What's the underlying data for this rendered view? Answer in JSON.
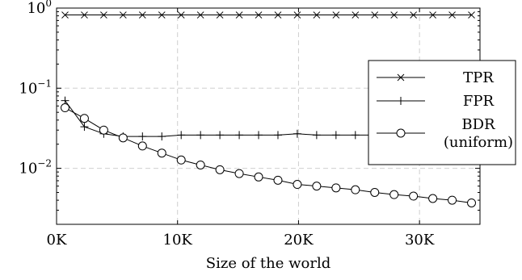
{
  "chart_data": {
    "type": "line",
    "title": "",
    "xlabel": "Size of the world",
    "ylabel": "",
    "xlim": [
      0,
      35000
    ],
    "ylim": [
      0.002,
      1
    ],
    "yscale": "log",
    "grid": true,
    "legend_position": "right",
    "x_ticks": [
      {
        "value": 0,
        "label": "0K"
      },
      {
        "value": 10000,
        "label": "10K"
      },
      {
        "value": 20000,
        "label": "20K"
      },
      {
        "value": 30000,
        "label": "30K"
      }
    ],
    "y_ticks": [
      {
        "value": 1,
        "base": "10",
        "exp": "0"
      },
      {
        "value": 0.1,
        "base": "10",
        "exp": "−1"
      },
      {
        "value": 0.01,
        "base": "10",
        "exp": "−2"
      }
    ],
    "series": [
      {
        "name": "TPR",
        "marker": "x",
        "x": [
          700,
          2300,
          3900,
          5500,
          7100,
          8700,
          10300,
          11900,
          13500,
          15100,
          16700,
          18300,
          19900,
          21500,
          23100,
          24700,
          26300,
          27900,
          29500,
          31100,
          32700,
          34300
        ],
        "values": [
          0.82,
          0.82,
          0.82,
          0.82,
          0.82,
          0.82,
          0.82,
          0.82,
          0.82,
          0.82,
          0.82,
          0.82,
          0.82,
          0.82,
          0.82,
          0.82,
          0.82,
          0.82,
          0.82,
          0.82,
          0.82,
          0.82
        ]
      },
      {
        "name": "FPR",
        "marker": "+",
        "x": [
          700,
          2300,
          3900,
          5500,
          7100,
          8700,
          10300,
          11900,
          13500,
          15100,
          16700,
          18300,
          19900,
          21500,
          23100,
          24700,
          26300,
          27900,
          29500,
          31100,
          32700,
          34300
        ],
        "values": [
          0.07,
          0.033,
          0.027,
          0.025,
          0.025,
          0.025,
          0.026,
          0.026,
          0.026,
          0.026,
          0.026,
          0.026,
          0.027,
          0.026,
          0.026,
          0.026,
          0.026,
          0.026,
          0.026,
          0.026,
          0.026,
          0.026
        ]
      },
      {
        "name": "BDR (uniform)",
        "name_lines": [
          "BDR",
          "(uniform)"
        ],
        "marker": "o",
        "x": [
          700,
          2300,
          3900,
          5500,
          7100,
          8700,
          10300,
          11900,
          13500,
          15100,
          16700,
          18300,
          19900,
          21500,
          23100,
          24700,
          26300,
          27900,
          29500,
          31100,
          32700,
          34300
        ],
        "values": [
          0.057,
          0.042,
          0.03,
          0.024,
          0.019,
          0.0155,
          0.0127,
          0.011,
          0.0096,
          0.0086,
          0.0078,
          0.0071,
          0.0063,
          0.006,
          0.0057,
          0.0054,
          0.005,
          0.0047,
          0.0045,
          0.0042,
          0.004,
          0.0037
        ]
      }
    ]
  }
}
